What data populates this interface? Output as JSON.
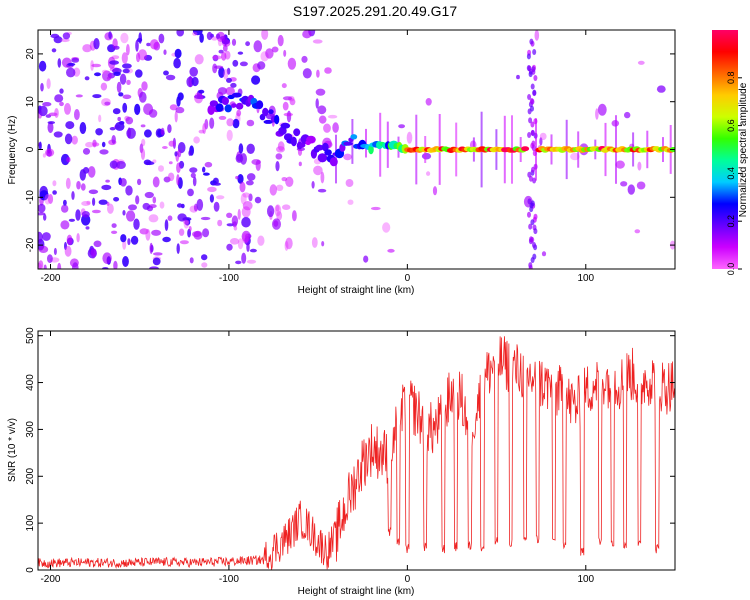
{
  "figure_title": "S197.2025.291.20.49.G17",
  "chart_data": [
    {
      "type": "heatmap",
      "title": "S197.2025.291.20.49.G17",
      "xlabel": "Height of straight line (km)",
      "ylabel": "Frequency (Hz)",
      "xlim": [
        -207,
        150
      ],
      "ylim": [
        -25,
        25
      ],
      "x_ticks": [
        -200,
        -100,
        0,
        100
      ],
      "y_ticks": [
        -20,
        -10,
        0,
        10,
        20
      ],
      "colorbar": {
        "label": "Normalized spectral amplitude",
        "range": [
          0.0,
          1.0
        ],
        "ticks": [
          "0.0",
          "0.2",
          "0.4",
          "0.6",
          "0.8"
        ],
        "tick_values": [
          0.0,
          0.2,
          0.4,
          0.6,
          0.8
        ],
        "colors": [
          "#ff66ff",
          "#cc00ff",
          "#6600ff",
          "#0000ff",
          "#00ccff",
          "#00ff99",
          "#33ff00",
          "#ccff00",
          "#ffcc00",
          "#ff6600",
          "#ff0000",
          "#ff0066"
        ]
      },
      "ridge": {
        "description_points_x": [
          -110,
          -95,
          -80,
          -70,
          -55,
          -40,
          -30,
          -20,
          -10,
          0,
          50,
          100,
          150
        ],
        "frequency_hz": [
          9,
          10,
          8,
          4,
          1,
          -2,
          2,
          1,
          1,
          0,
          0,
          0,
          0
        ],
        "peak_amplitude": [
          0.25,
          0.3,
          0.3,
          0.25,
          0.2,
          0.25,
          0.35,
          0.45,
          0.5,
          0.9,
          1.0,
          1.0,
          1.0
        ]
      },
      "vertical_artifact_x": 70
    },
    {
      "type": "line",
      "xlabel": "Height of straight line (km)",
      "ylabel": "SNR (10 * v/v)",
      "xlim": [
        -207,
        150
      ],
      "ylim": [
        0,
        510
      ],
      "x_ticks": [
        -200,
        -100,
        0,
        100
      ],
      "y_ticks": [
        0,
        100,
        200,
        300,
        400,
        500
      ],
      "color": "#ee2222",
      "series": [
        {
          "name": "SNR",
          "x": [
            -207,
            -200,
            -180,
            -160,
            -140,
            -120,
            -100,
            -90,
            -80,
            -75,
            -70,
            -65,
            -60,
            -55,
            -50,
            -45,
            -40,
            -35,
            -30,
            -25,
            -20,
            -15,
            -10,
            -5,
            0,
            5,
            10,
            15,
            20,
            25,
            30,
            35,
            40,
            45,
            50,
            55,
            60,
            65,
            70,
            75,
            80,
            85,
            90,
            95,
            100,
            105,
            110,
            115,
            120,
            125,
            130,
            135,
            140,
            145,
            150
          ],
          "y": [
            15,
            15,
            16,
            15,
            17,
            16,
            18,
            20,
            22,
            45,
            60,
            80,
            110,
            90,
            60,
            40,
            70,
            130,
            180,
            230,
            260,
            250,
            240,
            320,
            360,
            340,
            300,
            300,
            330,
            380,
            370,
            300,
            360,
            420,
            450,
            440,
            430,
            420,
            410,
            400,
            390,
            380,
            360,
            350,
            380,
            400,
            410,
            400,
            400,
            420,
            400,
            410,
            400,
            390,
            400
          ],
          "dropouts": [
            {
              "x": -10,
              "y": 80
            },
            {
              "x": -5,
              "y": 60
            },
            {
              "x": 0,
              "y": 45
            },
            {
              "x": 10,
              "y": 50
            },
            {
              "x": 20,
              "y": 45
            },
            {
              "x": 27,
              "y": 50
            },
            {
              "x": 35,
              "y": 50
            },
            {
              "x": 42,
              "y": 50
            },
            {
              "x": 50,
              "y": 60
            },
            {
              "x": 58,
              "y": 60
            },
            {
              "x": 66,
              "y": 60
            },
            {
              "x": 73,
              "y": 65
            },
            {
              "x": 82,
              "y": 60
            },
            {
              "x": 88,
              "y": 55
            },
            {
              "x": 98,
              "y": 40
            },
            {
              "x": 108,
              "y": 60
            },
            {
              "x": 115,
              "y": 60
            },
            {
              "x": 122,
              "y": 55
            },
            {
              "x": 130,
              "y": 55
            },
            {
              "x": 140,
              "y": 45
            }
          ]
        }
      ]
    }
  ]
}
